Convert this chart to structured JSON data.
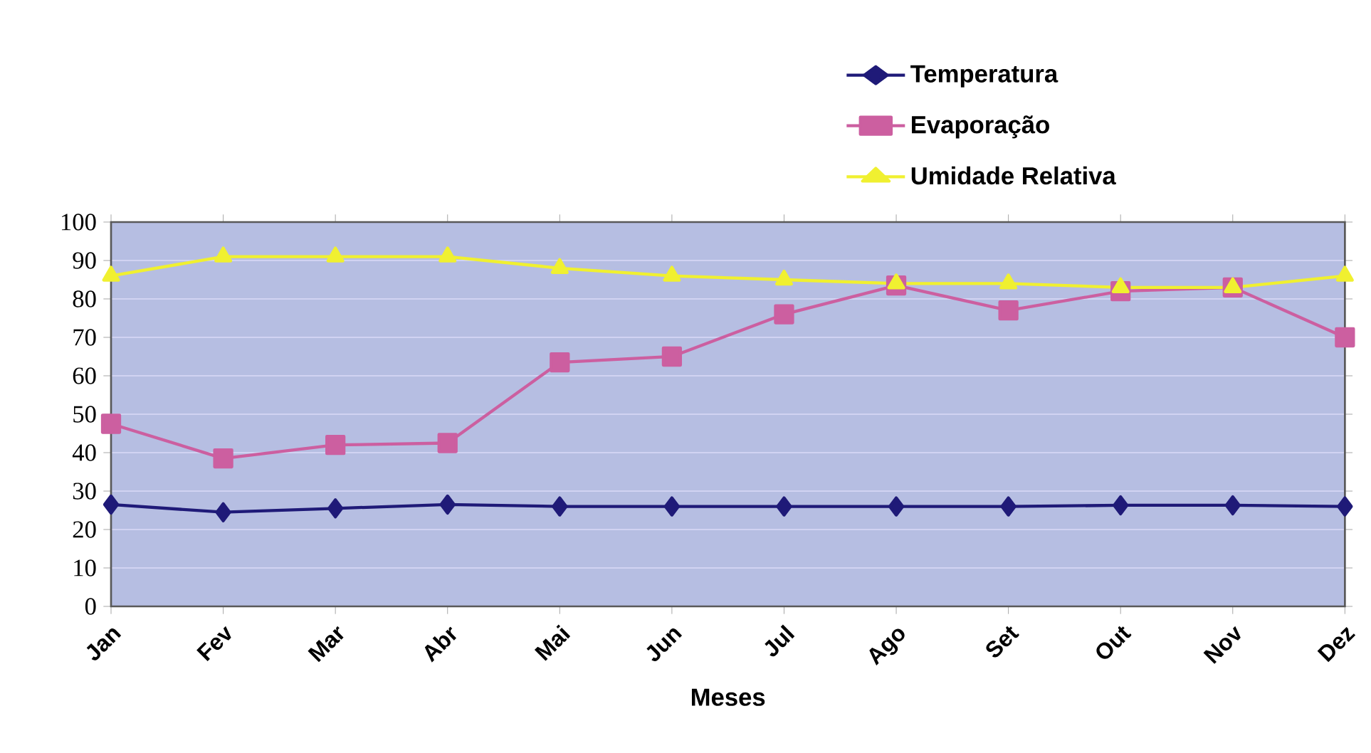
{
  "chart_data": {
    "type": "line",
    "xlabel": "Meses",
    "categories": [
      "Jan",
      "Fev",
      "Mar",
      "Abr",
      "Mai",
      "Jun",
      "Jul",
      "Ago",
      "Set",
      "Out",
      "Nov",
      "Dez"
    ],
    "series": [
      {
        "name": "Temperatura",
        "color": "#1f1a78",
        "marker": "diamond",
        "values": [
          26.5,
          24.5,
          25.5,
          26.5,
          26,
          26,
          26,
          26,
          26,
          26.3,
          26.3,
          26
        ]
      },
      {
        "name": "Evaporação",
        "color": "#cc5fa0",
        "marker": "square",
        "values": [
          47.5,
          38.5,
          42,
          42.5,
          63.5,
          65,
          76,
          83.5,
          77,
          82,
          83,
          70
        ]
      },
      {
        "name": "Umidade Relativa",
        "color": "#f0f030",
        "marker": "triangle",
        "values": [
          86,
          91,
          91,
          91,
          88,
          86,
          85,
          84,
          84,
          83,
          83,
          86
        ]
      }
    ],
    "ylim": [
      0,
      100
    ],
    "yticks": [
      0,
      10,
      20,
      30,
      40,
      50,
      60,
      70,
      80,
      90,
      100
    ],
    "grid": "y",
    "legend": "top",
    "line_style": "solid"
  }
}
